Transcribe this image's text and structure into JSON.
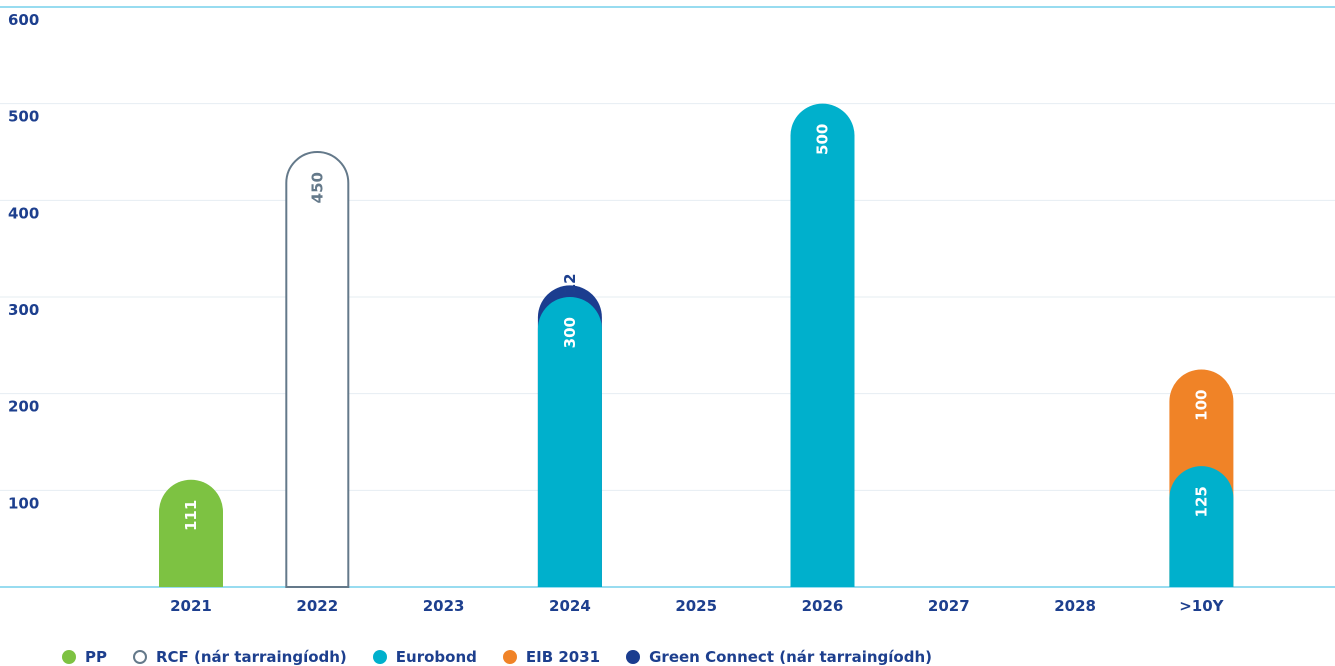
{
  "chart_data": {
    "type": "bar",
    "stacked": true,
    "categories": [
      "2021",
      "2022",
      "2023",
      "2024",
      "2025",
      "2026",
      "2027",
      "2028",
      ">10Y"
    ],
    "ylim": [
      0,
      600
    ],
    "yticks": [
      "100",
      "200",
      "300",
      "400",
      "500",
      "600"
    ],
    "grid": true,
    "legend_position": "bottom",
    "series": [
      {
        "name": "PP",
        "color": "#7dc242",
        "style": "filled",
        "values": [
          111,
          0,
          0,
          0,
          0,
          0,
          0,
          0,
          0
        ]
      },
      {
        "name": "RCF (nár tarraingíodh)",
        "color": "#64798a",
        "style": "outline",
        "values": [
          0,
          450,
          0,
          0,
          0,
          0,
          0,
          0,
          0
        ]
      },
      {
        "name": "Eurobond",
        "color": "#00b0cc",
        "style": "filled",
        "values": [
          0,
          0,
          0,
          300,
          0,
          500,
          0,
          0,
          125
        ]
      },
      {
        "name": "EIB 2031",
        "color": "#f08327",
        "style": "filled",
        "values": [
          0,
          0,
          0,
          0,
          0,
          0,
          0,
          0,
          100
        ]
      },
      {
        "name": "Green Connect (nár tarraingíodh)",
        "color": "#1b3d8f",
        "style": "filled",
        "values": [
          0,
          0,
          0,
          12,
          0,
          0,
          0,
          0,
          0
        ]
      }
    ],
    "data_labels": [
      {
        "category": "2021",
        "text": "111",
        "series": "PP"
      },
      {
        "category": "2022",
        "text": "450",
        "series": "RCF (nár tarraingíodh)"
      },
      {
        "category": "2024",
        "text": "300",
        "series": "Eurobond"
      },
      {
        "category": "2024",
        "text": "12",
        "series": "Green Connect (nár tarraingíodh)"
      },
      {
        "category": "2026",
        "text": "500",
        "series": "Eurobond"
      },
      {
        "category": ">10Y",
        "text": "125",
        "series": "Eurobond"
      },
      {
        "category": ">10Y",
        "text": "100",
        "series": "EIB 2031"
      }
    ],
    "axis_color": "#1d3f8e",
    "gridline_color": "#e6edf2",
    "top_line_color": "#5bc8e8"
  }
}
